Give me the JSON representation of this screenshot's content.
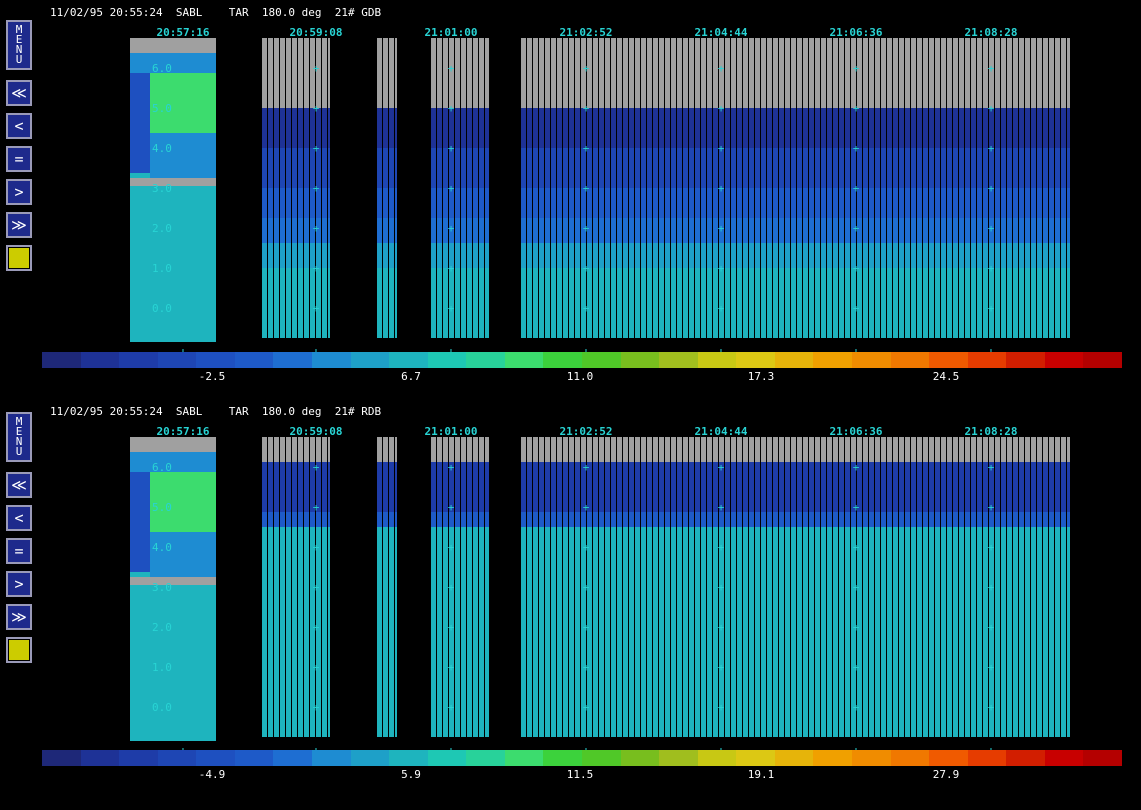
{
  "panels": [
    {
      "id": "gdb",
      "header": "11/02/95 20:55:24  SABL    TAR  180.0 deg  21# GDB",
      "time_labels": [
        "20:57:16",
        "20:59:08",
        "21:01:00",
        "21:02:52",
        "21:04:44",
        "21:06:36",
        "21:08:28"
      ],
      "height_labels": [
        "6.0",
        "5.0",
        "4.0",
        "3.0",
        "2.0",
        "1.0",
        "0.0"
      ],
      "colorbar_ticks": [
        "-2.5",
        "6.7",
        "11.0",
        "17.3",
        "24.5"
      ]
    },
    {
      "id": "rdb",
      "header": "11/02/95 20:55:24  SABL    TAR  180.0 deg  21# RDB",
      "time_labels": [
        "20:57:16",
        "20:59:08",
        "21:01:00",
        "21:02:52",
        "21:04:44",
        "21:06:36",
        "21:08:28"
      ],
      "height_labels": [
        "6.0",
        "5.0",
        "4.0",
        "3.0",
        "2.0",
        "1.0",
        "0.0"
      ],
      "colorbar_ticks": [
        "-4.9",
        "5.9",
        "11.5",
        "19.1",
        "27.9"
      ]
    }
  ],
  "toolbar": {
    "menu_label": "MENU",
    "buttons": [
      {
        "name": "rewind-fast-button",
        "glyph": "≪"
      },
      {
        "name": "rewind-button",
        "glyph": "<"
      },
      {
        "name": "pause-button",
        "glyph": "="
      },
      {
        "name": "forward-button",
        "glyph": ">"
      },
      {
        "name": "forward-fast-button",
        "glyph": "≫"
      }
    ]
  },
  "colors": {
    "text_time": "#28d4d4",
    "no_data": "#a0a0a0",
    "colorbar": [
      "#1e2878",
      "#1e3296",
      "#1e3ca8",
      "#1e46b4",
      "#1e50c0",
      "#1e5ac8",
      "#1e6ed2",
      "#1e8cd2",
      "#1ea0c8",
      "#1eb4be",
      "#1ec8b4",
      "#28d29a",
      "#3cdc6e",
      "#3cd23c",
      "#50c828",
      "#78be1e",
      "#a0be1e",
      "#c8c814",
      "#dcc814",
      "#e6b40a",
      "#f0a000",
      "#f08c00",
      "#f07800",
      "#f05a00",
      "#e63c00",
      "#d21e00",
      "#c80000",
      "#b40000"
    ]
  }
}
